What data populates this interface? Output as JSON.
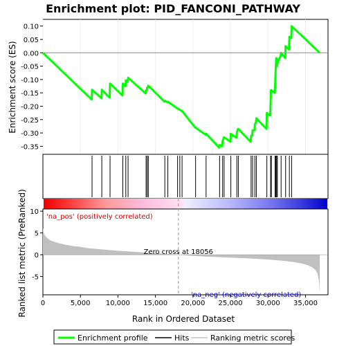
{
  "chart_data": {
    "type": "line",
    "title": "Enrichment plot: PID_FANCONI_PATHWAY",
    "xlabel": "Rank in Ordered Dataset",
    "xlim": [
      0,
      38000
    ],
    "x_ticks": [
      0,
      5000,
      10000,
      15000,
      20000,
      25000,
      30000,
      35000
    ],
    "x_tick_labels": [
      "0",
      "5,000",
      "10,000",
      "15,000",
      "20,000",
      "25,000",
      "30,000",
      "35,000"
    ],
    "es_panel": {
      "ylabel": "Enrichment score (ES)",
      "ylim": [
        -0.38,
        0.125
      ],
      "y_ticks": [
        0.1,
        0.05,
        0.0,
        -0.05,
        -0.1,
        -0.15,
        -0.2,
        -0.25,
        -0.3,
        -0.35
      ],
      "y_tick_labels": [
        "0.10",
        "0.05",
        "0.00",
        "-0.05",
        "-0.10",
        "-0.15",
        "-0.20",
        "-0.25",
        "-0.30",
        "-0.35"
      ],
      "zero_line": 0,
      "series": [
        {
          "name": "Enrichment profile",
          "color": "#00ff00",
          "x": [
            0,
            6500,
            6550,
            7800,
            7850,
            8900,
            8950,
            10600,
            10650,
            11000,
            11050,
            11300,
            11350,
            13700,
            13750,
            13850,
            13900,
            14000,
            14050,
            16200,
            16250,
            16600,
            16650,
            17900,
            17950,
            18200,
            18250,
            18500,
            18550,
            20300,
            20350,
            21700,
            21750,
            23500,
            23550,
            23900,
            23950,
            24100,
            24150,
            25000,
            25050,
            25800,
            25850,
            26000,
            26050,
            27700,
            27750,
            27900,
            27950,
            28200,
            28250,
            28400,
            28450,
            29800,
            29850,
            30300,
            30350,
            30400,
            30450,
            30900,
            30950,
            31000,
            31050,
            31100,
            31150,
            31200,
            31250,
            31700,
            31750,
            32300,
            32350,
            32800,
            32850,
            33100,
            33150,
            36900
          ],
          "y": [
            0.0,
            -0.175,
            -0.138,
            -0.17,
            -0.138,
            -0.168,
            -0.115,
            -0.16,
            -0.115,
            -0.125,
            -0.103,
            -0.108,
            -0.093,
            -0.152,
            -0.14,
            -0.14,
            -0.13,
            -0.13,
            -0.123,
            -0.183,
            -0.18,
            -0.185,
            -0.183,
            -0.208,
            -0.208,
            -0.213,
            -0.213,
            -0.218,
            -0.218,
            -0.28,
            -0.28,
            -0.307,
            -0.303,
            -0.355,
            -0.345,
            -0.35,
            -0.33,
            -0.318,
            -0.316,
            -0.333,
            -0.303,
            -0.318,
            -0.298,
            -0.285,
            -0.285,
            -0.333,
            -0.31,
            -0.31,
            -0.29,
            -0.29,
            -0.268,
            -0.26,
            -0.245,
            -0.285,
            -0.225,
            -0.235,
            -0.18,
            -0.14,
            -0.14,
            -0.15,
            -0.12,
            -0.08,
            -0.05,
            -0.02,
            -0.02,
            -0.05,
            -0.04,
            -0.01,
            0.0,
            -0.02,
            0.025,
            0.012,
            0.06,
            0.055,
            0.1,
            0.0
          ]
        }
      ]
    },
    "hits": {
      "name": "Hits",
      "color": "#000000",
      "x": [
        6550,
        7850,
        8950,
        10650,
        11050,
        11350,
        13750,
        13900,
        14050,
        16250,
        16650,
        17950,
        18250,
        18550,
        20350,
        21750,
        23550,
        23950,
        24150,
        25050,
        25850,
        26050,
        27750,
        27950,
        28250,
        28450,
        29850,
        30350,
        30450,
        30950,
        31050,
        31150,
        31250,
        31750,
        32350,
        32850,
        33150
      ]
    },
    "rank_metric_panel": {
      "name": "Ranking metric scores",
      "ylabel": "Ranked list metric (PreRanked)",
      "ylim": [
        -9.2,
        10.5
      ],
      "y_ticks": [
        10,
        5,
        0,
        -5
      ],
      "y_tick_labels": [
        "10",
        "5",
        "0",
        "-5"
      ],
      "color": "#c0c0c0",
      "x": [
        0,
        100,
        300,
        600,
        1000,
        1500,
        2000,
        3000,
        4000,
        5000,
        6000,
        8000,
        10000,
        12000,
        14000,
        16000,
        18056,
        20000,
        22000,
        24000,
        26000,
        28000,
        30000,
        32000,
        33500,
        34500,
        35300,
        35900,
        36300,
        36600,
        36800,
        36900
      ],
      "y": [
        6.2,
        5.0,
        4.3,
        3.8,
        3.3,
        3.0,
        2.7,
        2.3,
        2.0,
        1.8,
        1.5,
        1.2,
        0.9,
        0.7,
        0.45,
        0.25,
        0.0,
        -0.25,
        -0.45,
        -0.6,
        -0.75,
        -0.9,
        -1.1,
        -1.4,
        -1.7,
        -2.0,
        -2.4,
        -2.9,
        -3.5,
        -4.3,
        -6.0,
        -8.8
      ],
      "zero_cross_label": "Zero cross at 18056",
      "zero_cross_x": 18056,
      "pos_label": "'na_pos' (positively correlated)",
      "neg_label": "'na_neg' (negatively correlated)",
      "pos_label_color": "#cc0000",
      "neg_label_color": "#0000cc"
    },
    "color_bar": {
      "from_color": "#ff0000",
      "mid_color": "#ffffff",
      "to_color": "#0000ff"
    },
    "legend": {
      "placement": "bottom",
      "entries": [
        {
          "label": "Enrichment profile",
          "color": "#00ff00"
        },
        {
          "label": "Hits",
          "color": "#000000"
        },
        {
          "label": "Ranking metric scores",
          "color": "#c0c0c0"
        }
      ]
    }
  }
}
